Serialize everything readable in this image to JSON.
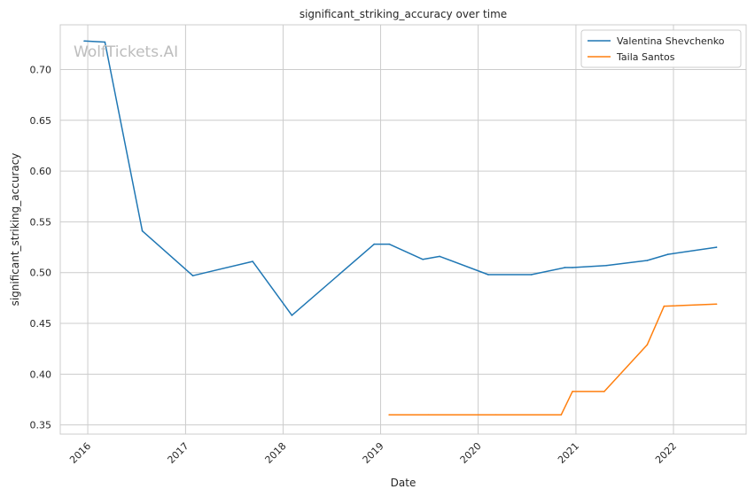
{
  "chart_data": {
    "type": "line",
    "title": "significant_striking_accuracy over time",
    "xlabel": "Date",
    "ylabel": "significant_striking_accuracy",
    "watermark": "WolfTickets.AI",
    "xlim": [
      "2015-09-20",
      "2022-09-30"
    ],
    "ylim": [
      0.341,
      0.744
    ],
    "x_ticks": [
      "2016",
      "2017",
      "2018",
      "2019",
      "2020",
      "2021",
      "2022"
    ],
    "y_ticks": [
      "0.35",
      "0.40",
      "0.45",
      "0.50",
      "0.55",
      "0.60",
      "0.65",
      "0.70"
    ],
    "grid": true,
    "legend_position": "top-right",
    "series": [
      {
        "name": "Valentina Shevchenko",
        "color": "#1f77b4",
        "points": [
          [
            "2015-12-19",
            0.728
          ],
          [
            "2016-03-05",
            0.727
          ],
          [
            "2016-07-23",
            0.541
          ],
          [
            "2017-01-28",
            0.497
          ],
          [
            "2017-09-09",
            0.511
          ],
          [
            "2018-02-03",
            0.458
          ],
          [
            "2018-12-08",
            0.528
          ],
          [
            "2019-02-02",
            0.528
          ],
          [
            "2019-06-08",
            0.513
          ],
          [
            "2019-08-10",
            0.516
          ],
          [
            "2020-02-08",
            0.498
          ],
          [
            "2020-07-18",
            0.498
          ],
          [
            "2020-11-21",
            0.505
          ],
          [
            "2020-12-19",
            0.505
          ],
          [
            "2021-04-24",
            0.507
          ],
          [
            "2021-09-25",
            0.512
          ],
          [
            "2021-12-11",
            0.518
          ],
          [
            "2022-06-11",
            0.525
          ]
        ]
      },
      {
        "name": "Taila Santos",
        "color": "#ff7f0e",
        "points": [
          [
            "2019-02-02",
            0.36
          ],
          [
            "2019-06-29",
            0.36
          ],
          [
            "2020-03-07",
            0.36
          ],
          [
            "2020-11-07",
            0.36
          ],
          [
            "2020-12-19",
            0.383
          ],
          [
            "2021-04-17",
            0.383
          ],
          [
            "2021-09-25",
            0.429
          ],
          [
            "2021-11-27",
            0.467
          ],
          [
            "2022-06-11",
            0.469
          ]
        ]
      }
    ]
  }
}
